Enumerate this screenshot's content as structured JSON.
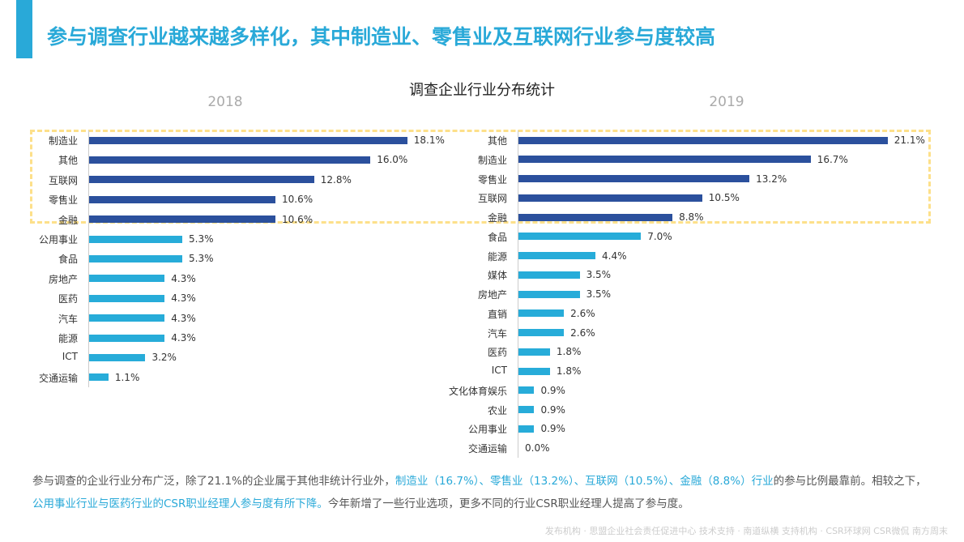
{
  "header": {
    "title": "参与调查行业越来越多样化，其中制造业、零售业及互联网行业参与度较高"
  },
  "colors": {
    "accent": "#29a9d8",
    "top5": "#2b509d",
    "others": "#27acd9",
    "highlight_box": "#fde08a"
  },
  "chart_data": [
    {
      "type": "bar",
      "orientation": "horizontal",
      "title": "调查企业行业分布统计",
      "subtitle": "2018",
      "categories": [
        "制造业",
        "其他",
        "互联网",
        "零售业",
        "金融",
        "公用事业",
        "食品",
        "房地产",
        "医药",
        "汽车",
        "能源",
        "ICT",
        "交通运输"
      ],
      "values": [
        18.1,
        16.0,
        12.8,
        10.6,
        10.6,
        5.3,
        5.3,
        4.3,
        4.3,
        4.3,
        4.3,
        3.2,
        1.1
      ],
      "labels": [
        "18.1%",
        "16.0%",
        "12.8%",
        "10.6%",
        "10.6%",
        "5.3%",
        "5.3%",
        "4.3%",
        "4.3%",
        "4.3%",
        "4.3%",
        "3.2%",
        "1.1%"
      ],
      "highlighted_count": 5,
      "unit": "%"
    },
    {
      "type": "bar",
      "orientation": "horizontal",
      "subtitle": "2019",
      "categories": [
        "其他",
        "制造业",
        "零售业",
        "互联网",
        "金融",
        "食品",
        "能源",
        "媒体",
        "房地产",
        "直销",
        "汽车",
        "医药",
        "ICT",
        "文化体育娱乐",
        "农业",
        "公用事业",
        "交通运输"
      ],
      "values": [
        21.1,
        16.7,
        13.2,
        10.5,
        8.8,
        7.0,
        4.4,
        3.5,
        3.5,
        2.6,
        2.6,
        1.8,
        1.8,
        0.9,
        0.9,
        0.9,
        0.0
      ],
      "labels": [
        "21.1%",
        "16.7%",
        "13.2%",
        "10.5%",
        "8.8%",
        "7.0%",
        "4.4%",
        "3.5%",
        "3.5%",
        "2.6%",
        "2.6%",
        "1.8%",
        "1.8%",
        "0.9%",
        "0.9%",
        "0.9%",
        "0.0%"
      ],
      "highlighted_count": 5,
      "unit": "%"
    }
  ],
  "description": {
    "p1": "参与调查的企业行业分布广泛，除了21.1%的企业属于其他非统计行业外，",
    "h1": "制造业（16.7%）、零售业（13.2%）、互联网（10.5%）、金融（8.8%）行业",
    "p2": "的参与比例最靠前。相较之下，",
    "h2": "公用事业行业与医药行业的CSR职业经理人参与度有所下降。",
    "p3": "今年新增了一些行业选项，更多不同的行业CSR职业经理人提高了参与度。"
  },
  "footer": "发布机构 · 思盟企业社会责任促进中心  技术支持 · 南道纵横  支持机构 · CSR环球网 CSR微侃 南方周末"
}
